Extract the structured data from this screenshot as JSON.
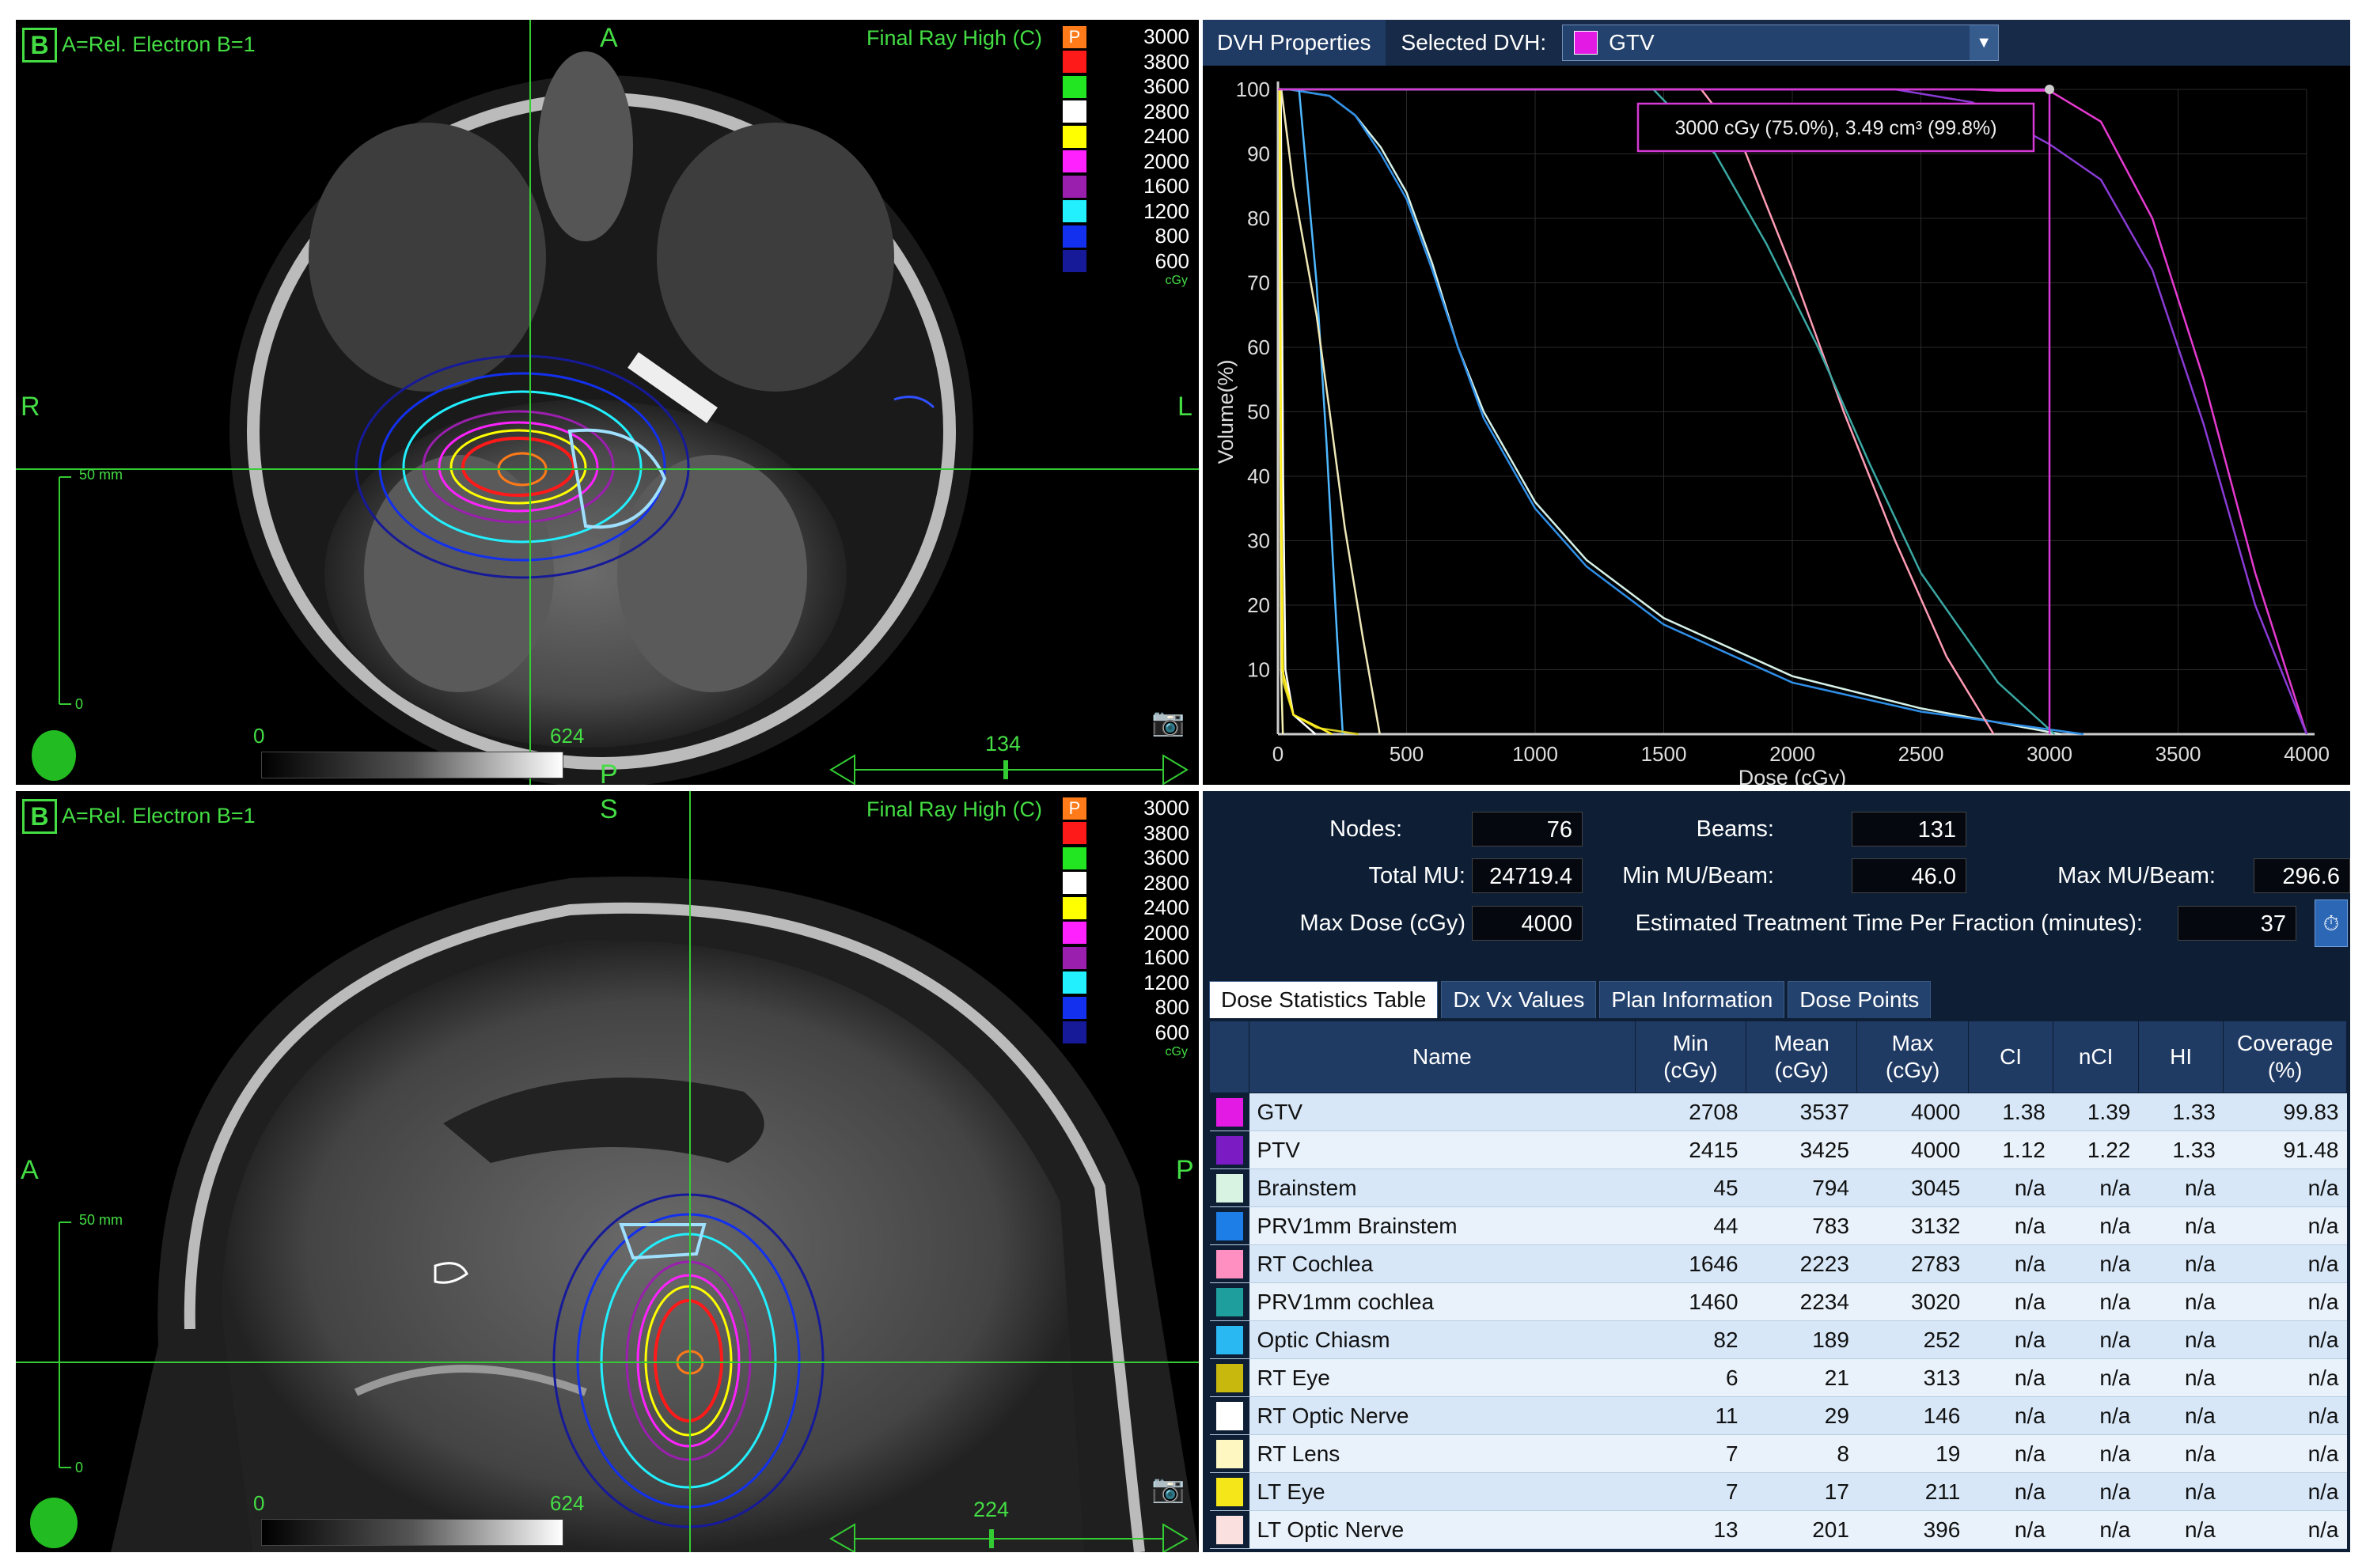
{
  "axial": {
    "view_label": "B",
    "mode_label": "A=Rel. Electron B=1",
    "orient_top": "A",
    "orient_left": "R",
    "orient_right": "L",
    "orient_bottom": "P",
    "plan_label": "Final Ray High  (C)",
    "scale_top": "50 mm",
    "scale_bottom": "0",
    "window_min": "0",
    "window_max": "624",
    "slice": "134"
  },
  "sagittal": {
    "view_label": "B",
    "mode_label": "A=Rel. Electron B=1",
    "orient_top": "S",
    "orient_left": "A",
    "orient_right": "P",
    "plan_label": "Final Ray High  (C)",
    "scale_top": "50 mm",
    "scale_bottom": "0",
    "window_min": "0",
    "window_max": "624",
    "slice": "224"
  },
  "colorbar": {
    "p_label": "P",
    "levels": [
      {
        "value": "3000",
        "color": "#ff7a18"
      },
      {
        "value": "3800",
        "color": "#ff1a1a"
      },
      {
        "value": "3600",
        "color": "#22e622"
      },
      {
        "value": "2800",
        "color": "#ffffff"
      },
      {
        "value": "2400",
        "color": "#ffff00"
      },
      {
        "value": "2000",
        "color": "#ff22ff"
      },
      {
        "value": "1600",
        "color": "#9b1fae"
      },
      {
        "value": "1200",
        "color": "#22f0ff"
      },
      {
        "value": "800",
        "color": "#1330ee"
      },
      {
        "value": "600",
        "color": "#161a99"
      }
    ],
    "unit": "cGy"
  },
  "dvh": {
    "tab_label": "DVH Properties",
    "selected_label": "Selected DVH:",
    "selected_value": "GTV",
    "selected_color": "#e31ae3",
    "tooltip": "3000 cGy (75.0%), 3.49 cm³ (99.8%)"
  },
  "chart_data": {
    "type": "line",
    "xlabel": "Dose (cGy)",
    "ylabel": "Volume(%)",
    "xlim": [
      0,
      4000
    ],
    "ylim": [
      0,
      100
    ],
    "xticks": [
      "0",
      "500",
      "1000",
      "1500",
      "2000",
      "2500",
      "3000",
      "3500",
      "4000"
    ],
    "yticks": [
      "10",
      "20",
      "30",
      "40",
      "50",
      "60",
      "70",
      "80",
      "90",
      "100"
    ],
    "cursor": {
      "x": 3000,
      "y": 100
    },
    "series": [
      {
        "color": "#e53ad0",
        "x": [
          0,
          2700,
          2800,
          3000,
          3200,
          3400,
          3600,
          3800,
          4000
        ],
        "y": [
          100,
          100,
          99.8,
          99.8,
          95,
          80,
          55,
          25,
          0
        ]
      },
      {
        "color": "#8a3bd6",
        "x": [
          0,
          2400,
          2700,
          3000,
          3200,
          3400,
          3600,
          3800,
          4000
        ],
        "y": [
          100,
          100,
          98,
          91.5,
          86,
          72,
          48,
          20,
          0
        ]
      },
      {
        "color": "#d6f2e8",
        "x": [
          0,
          45,
          200,
          300,
          400,
          500,
          600,
          700,
          800,
          1000,
          1200,
          1500,
          2000,
          2500,
          3045
        ],
        "y": [
          100,
          100,
          99,
          96,
          91,
          84,
          73,
          60,
          50,
          36,
          27,
          18,
          9,
          4,
          0
        ]
      },
      {
        "color": "#2e8fe8",
        "x": [
          0,
          44,
          200,
          300,
          400,
          500,
          600,
          700,
          800,
          1000,
          1200,
          1500,
          2000,
          2500,
          3132
        ],
        "y": [
          100,
          100,
          99,
          96,
          90,
          83,
          72,
          60,
          49,
          35,
          26,
          17,
          8,
          3.5,
          0
        ]
      },
      {
        "color": "#ff9bb5",
        "x": [
          0,
          1646,
          1800,
          2000,
          2200,
          2400,
          2600,
          2783
        ],
        "y": [
          100,
          100,
          92,
          72,
          50,
          30,
          12,
          0
        ]
      },
      {
        "color": "#3aa8a3",
        "x": [
          0,
          1460,
          1700,
          1900,
          2100,
          2300,
          2500,
          2800,
          3020
        ],
        "y": [
          100,
          100,
          90,
          76,
          60,
          42,
          25,
          8,
          0
        ]
      },
      {
        "color": "#4fb8ff",
        "x": [
          0,
          82,
          150,
          189,
          230,
          252
        ],
        "y": [
          100,
          100,
          70,
          45,
          15,
          0
        ]
      },
      {
        "color": "#d8cc22",
        "x": [
          0,
          6,
          15,
          21,
          60,
          150,
          313
        ],
        "y": [
          100,
          100,
          30,
          8,
          3,
          1,
          0
        ]
      },
      {
        "color": "#ffffff",
        "x": [
          0,
          11,
          20,
          29,
          60,
          146
        ],
        "y": [
          100,
          100,
          40,
          10,
          3,
          0
        ]
      },
      {
        "color": "#f6f2b0",
        "x": [
          0,
          7,
          8,
          12,
          19
        ],
        "y": [
          100,
          100,
          60,
          10,
          0
        ]
      },
      {
        "color": "#ffee22",
        "x": [
          0,
          7,
          12,
          17,
          60,
          211
        ],
        "y": [
          100,
          100,
          40,
          10,
          3,
          0
        ]
      },
      {
        "color": "#f0e8b8",
        "x": [
          0,
          13,
          60,
          150,
          201,
          260,
          330,
          396
        ],
        "y": [
          100,
          100,
          85,
          65,
          50,
          32,
          15,
          0
        ]
      }
    ]
  },
  "plan_stats": {
    "nodes_label": "Nodes:",
    "nodes": "76",
    "beams_label": "Beams:",
    "beams": "131",
    "total_mu_label": "Total MU:",
    "total_mu": "24719.4",
    "min_mu_label": "Min MU/Beam:",
    "min_mu": "46.0",
    "max_mu_label": "Max MU/Beam:",
    "max_mu": "296.6",
    "max_dose_label": "Max Dose (cGy)",
    "max_dose": "4000",
    "time_label": "Estimated Treatment Time Per Fraction (minutes):",
    "time": "37"
  },
  "tabs": [
    "Dose Statistics Table",
    "Dx Vx Values",
    "Plan Information",
    "Dose Points"
  ],
  "table": {
    "headers": {
      "name": "Name",
      "min": [
        "Min",
        "(cGy)"
      ],
      "mean": [
        "Mean",
        "(cGy)"
      ],
      "max": [
        "Max",
        "(cGy)"
      ],
      "ci": "CI",
      "nci": "nCI",
      "hi": "HI",
      "coverage": [
        "Coverage",
        "(%)"
      ]
    },
    "rows": [
      {
        "color": "#e31ae3",
        "name": "GTV",
        "min": "2708",
        "mean": "3537",
        "max": "4000",
        "ci": "1.38",
        "nci": "1.39",
        "hi": "1.33",
        "coverage": "99.83"
      },
      {
        "color": "#7a1bc4",
        "name": "PTV",
        "min": "2415",
        "mean": "3425",
        "max": "4000",
        "ci": "1.12",
        "nci": "1.22",
        "hi": "1.33",
        "coverage": "91.48"
      },
      {
        "color": "#d8f3e2",
        "name": "Brainstem",
        "min": "45",
        "mean": "794",
        "max": "3045",
        "ci": "n/a",
        "nci": "n/a",
        "hi": "n/a",
        "coverage": "n/a"
      },
      {
        "color": "#1e7ee8",
        "name": "PRV1mm Brainstem",
        "min": "44",
        "mean": "783",
        "max": "3132",
        "ci": "n/a",
        "nci": "n/a",
        "hi": "n/a",
        "coverage": "n/a"
      },
      {
        "color": "#ff8fc0",
        "name": "RT Cochlea",
        "min": "1646",
        "mean": "2223",
        "max": "2783",
        "ci": "n/a",
        "nci": "n/a",
        "hi": "n/a",
        "coverage": "n/a"
      },
      {
        "color": "#1f9e9e",
        "name": "PRV1mm cochlea",
        "min": "1460",
        "mean": "2234",
        "max": "3020",
        "ci": "n/a",
        "nci": "n/a",
        "hi": "n/a",
        "coverage": "n/a"
      },
      {
        "color": "#2ab8f2",
        "name": "Optic Chiasm",
        "min": "82",
        "mean": "189",
        "max": "252",
        "ci": "n/a",
        "nci": "n/a",
        "hi": "n/a",
        "coverage": "n/a"
      },
      {
        "color": "#c8b80d",
        "name": "RT Eye",
        "min": "6",
        "mean": "21",
        "max": "313",
        "ci": "n/a",
        "nci": "n/a",
        "hi": "n/a",
        "coverage": "n/a"
      },
      {
        "color": "#ffffff",
        "name": "RT Optic Nerve",
        "min": "11",
        "mean": "29",
        "max": "146",
        "ci": "n/a",
        "nci": "n/a",
        "hi": "n/a",
        "coverage": "n/a"
      },
      {
        "color": "#fff7c2",
        "name": "RT Lens",
        "min": "7",
        "mean": "8",
        "max": "19",
        "ci": "n/a",
        "nci": "n/a",
        "hi": "n/a",
        "coverage": "n/a"
      },
      {
        "color": "#f5e61a",
        "name": "LT Eye",
        "min": "7",
        "mean": "17",
        "max": "211",
        "ci": "n/a",
        "nci": "n/a",
        "hi": "n/a",
        "coverage": "n/a"
      },
      {
        "color": "#fbe0e0",
        "name": "LT Optic Nerve",
        "min": "13",
        "mean": "201",
        "max": "396",
        "ci": "n/a",
        "nci": "n/a",
        "hi": "n/a",
        "coverage": "n/a"
      }
    ]
  }
}
